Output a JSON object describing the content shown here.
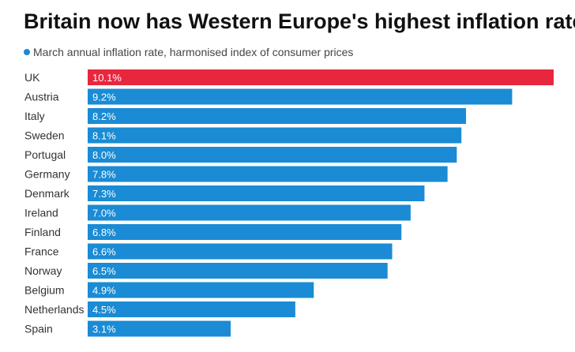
{
  "title": "Britain now has Western Europe's highest inflation rate",
  "subtitle": "March annual inflation rate, harmonised index of consumer prices",
  "colors": {
    "default": "#1a8bd4",
    "highlight": "#e8273e",
    "legend_dot": "#1a8bd4"
  },
  "chart_data": {
    "type": "bar",
    "orientation": "horizontal",
    "categories": [
      "UK",
      "Austria",
      "Italy",
      "Sweden",
      "Portugal",
      "Germany",
      "Denmark",
      "Ireland",
      "Finland",
      "France",
      "Norway",
      "Belgium",
      "Netherlands",
      "Spain"
    ],
    "values": [
      10.1,
      9.2,
      8.2,
      8.1,
      8.0,
      7.8,
      7.3,
      7.0,
      6.8,
      6.6,
      6.5,
      4.9,
      4.5,
      3.1
    ],
    "value_labels": [
      "10.1%",
      "9.2%",
      "8.2%",
      "8.1%",
      "8.0%",
      "7.8%",
      "7.3%",
      "7.0%",
      "6.8%",
      "6.6%",
      "6.5%",
      "4.9%",
      "4.5%",
      "3.1%"
    ],
    "highlight_category": "UK",
    "xlim": [
      0,
      10.1
    ],
    "grid": false,
    "legend": "top-left"
  }
}
